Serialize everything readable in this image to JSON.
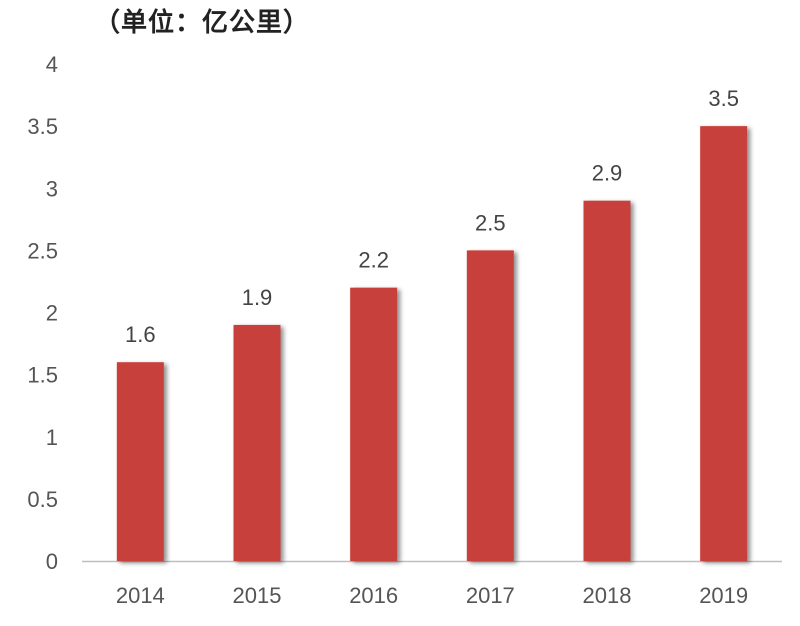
{
  "unit_label": "（单位：亿公里）",
  "colors": {
    "bar": "#C8403A",
    "axis": "#BFBFBF",
    "text": "#555555",
    "data_label": "#444444"
  },
  "chart_data": {
    "type": "bar",
    "categories": [
      "2014",
      "2015",
      "2016",
      "2017",
      "2018",
      "2019"
    ],
    "values": [
      1.6,
      1.9,
      2.2,
      2.5,
      2.9,
      3.5
    ],
    "data_labels": [
      "1.6",
      "1.9",
      "2.2",
      "2.5",
      "2.9",
      "3.5"
    ],
    "yticks": [
      "0",
      "0.5",
      "1",
      "1.5",
      "2",
      "2.5",
      "3",
      "3.5",
      "4"
    ],
    "ylim": [
      0,
      4
    ],
    "grid": false,
    "title": "",
    "xlabel": "",
    "ylabel": ""
  }
}
